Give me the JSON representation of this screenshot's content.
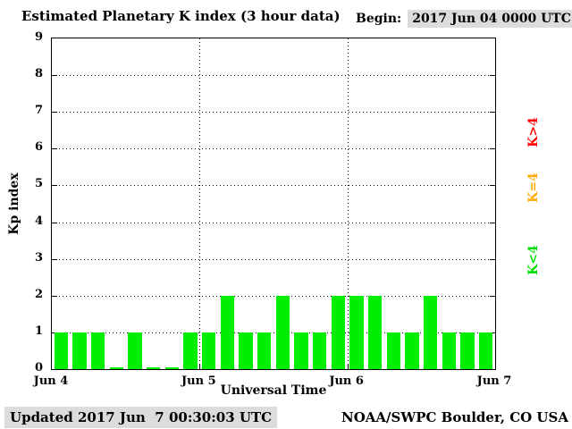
{
  "header": {
    "title": "Estimated Planetary K index (3 hour data)",
    "begin_label": "Begin:",
    "begin_value": "2017 Jun 04 0000 UTC"
  },
  "footer": {
    "updated": "Updated 2017 Jun  7 00:30:03 UTC",
    "source": "NOAA/SWPC Boulder, CO USA"
  },
  "chart_data": {
    "type": "bar",
    "title": "Estimated Planetary K index (3 hour data)",
    "xlabel": "Universal Time",
    "ylabel": "Kp index",
    "ylim": [
      0,
      9
    ],
    "y_ticks": [
      0,
      1,
      2,
      3,
      4,
      5,
      6,
      7,
      8,
      9
    ],
    "x_tick_labels": [
      "Jun 4",
      "Jun 5",
      "Jun 6",
      "Jun 7"
    ],
    "begin": "2017 Jun 04 0000 UTC",
    "bin_hours": 3,
    "bar_color": "#00ee00",
    "grid": "dotted",
    "values": [
      1,
      1,
      1,
      0,
      1,
      0,
      0,
      1,
      1,
      2,
      1,
      1,
      2,
      1,
      1,
      2,
      2,
      2,
      1,
      1,
      2,
      1,
      1,
      1
    ],
    "legend": [
      {
        "label": "K>4",
        "color": "#ff0000"
      },
      {
        "label": "K=4",
        "color": "#ffaa00"
      },
      {
        "label": "K<4",
        "color": "#00dd00"
      }
    ]
  }
}
